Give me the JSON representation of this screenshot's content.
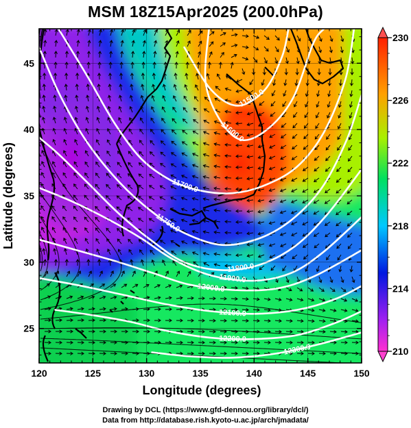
{
  "title": "MSM 18Z15Apr2025 (200.0hPa)",
  "chart_data": {
    "type": "heatmap",
    "title": "MSM 18Z15Apr2025 (200.0hPa)",
    "xlabel": "Longitude (degrees)",
    "ylabel": "Latitude  (degrees)",
    "xlim": [
      120,
      150
    ],
    "ylim": [
      22.4,
      47.6
    ],
    "xticks": [
      120,
      125,
      130,
      135,
      140,
      145,
      150
    ],
    "xtick_labels": [
      "120",
      "125",
      "130",
      "135",
      "140",
      "145",
      "150"
    ],
    "yticks": [
      25,
      30,
      35,
      40,
      45
    ],
    "ytick_labels": [
      "25",
      "30",
      "35",
      "40",
      "45"
    ],
    "grid": true,
    "colorbar": {
      "min": 210,
      "max": 230,
      "ticks": [
        210,
        214,
        218,
        222,
        226,
        230
      ],
      "tick_labels": [
        "210",
        "214",
        "218",
        "222",
        "226",
        "230"
      ],
      "colors": [
        "#ff2fd0",
        "#a020f0",
        "#0018e0",
        "#00c8ff",
        "#00e060",
        "#a8f000",
        "#ffa000",
        "#ff2000"
      ]
    },
    "contours": [
      {
        "label": "11500.0",
        "points": [
          [
            133.5,
            46.2
          ],
          [
            136.0,
            43.0
          ],
          [
            138.5,
            41.8
          ],
          [
            141.0,
            43.0
          ],
          [
            142.6,
            45.5
          ],
          [
            143.2,
            47.6
          ]
        ]
      },
      {
        "label": "11600.0",
        "points": [
          [
            135.8,
            47.6
          ],
          [
            135.5,
            43.5
          ],
          [
            137.0,
            40.5
          ],
          [
            139.0,
            39.2
          ],
          [
            141.5,
            40.2
          ],
          [
            143.7,
            42.5
          ],
          [
            145.5,
            46.5
          ],
          [
            146.5,
            47.6
          ]
        ]
      },
      {
        "label": "11700.0",
        "points": [
          [
            121.8,
            47.6
          ],
          [
            124.5,
            44.0
          ],
          [
            127.0,
            40.5
          ],
          [
            129.5,
            37.8
          ],
          [
            132.2,
            36.2
          ],
          [
            135.0,
            35.4
          ],
          [
            138.0,
            35.2
          ],
          [
            141.0,
            35.8
          ],
          [
            144.0,
            37.2
          ],
          [
            146.5,
            39.8
          ],
          [
            148.5,
            43.8
          ],
          [
            149.3,
            47.6
          ]
        ]
      },
      {
        "label": "11750.0",
        "points": [
          [
            120.0,
            46.2
          ],
          [
            122.0,
            42.5
          ],
          [
            124.5,
            39.0
          ],
          [
            127.5,
            36.0
          ],
          [
            130.5,
            33.8
          ],
          [
            133.5,
            32.2
          ],
          [
            137.0,
            31.3
          ],
          [
            140.5,
            31.8
          ],
          [
            143.5,
            33.2
          ],
          [
            146.3,
            35.6
          ],
          [
            148.6,
            39.2
          ],
          [
            150.0,
            42.6
          ]
        ]
      },
      {
        "label": "11800.0",
        "points": [
          [
            120.0,
            39.4
          ],
          [
            122.0,
            38.0
          ],
          [
            124.5,
            36.0
          ],
          [
            127.5,
            33.6
          ],
          [
            130.5,
            31.6
          ],
          [
            133.5,
            30.0
          ],
          [
            137.0,
            29.4
          ],
          [
            140.5,
            29.8
          ],
          [
            143.8,
            31.2
          ],
          [
            146.8,
            33.6
          ],
          [
            150.0,
            37.0
          ]
        ]
      },
      {
        "label": "11900.0",
        "points": [
          [
            120.0,
            35.6
          ],
          [
            123.0,
            34.6
          ],
          [
            126.5,
            33.2
          ],
          [
            129.5,
            31.8
          ],
          [
            132.5,
            30.2
          ],
          [
            136.0,
            29.0
          ],
          [
            140.0,
            28.6
          ],
          [
            143.5,
            29.2
          ],
          [
            146.5,
            30.8
          ],
          [
            150.0,
            33.4
          ]
        ]
      },
      {
        "label": "12000.0",
        "points": [
          [
            120.0,
            31.7
          ],
          [
            123.5,
            30.9
          ],
          [
            127.0,
            30.1
          ],
          [
            130.5,
            29.2
          ],
          [
            134.0,
            28.3
          ],
          [
            138.0,
            27.9
          ],
          [
            142.0,
            28.0
          ],
          [
            145.5,
            28.9
          ],
          [
            150.0,
            30.9
          ]
        ]
      },
      {
        "label": "12100.0",
        "points": [
          [
            120.0,
            28.8
          ],
          [
            124.0,
            28.2
          ],
          [
            128.0,
            27.5
          ],
          [
            132.0,
            26.8
          ],
          [
            136.0,
            26.3
          ],
          [
            140.0,
            26.1
          ],
          [
            144.0,
            26.4
          ],
          [
            147.5,
            27.2
          ],
          [
            150.0,
            28.2
          ]
        ]
      },
      {
        "label": "12200.0",
        "points": [
          [
            121.5,
            26.4
          ],
          [
            125.0,
            26.0
          ],
          [
            128.5,
            25.5
          ],
          [
            132.0,
            24.8
          ],
          [
            136.0,
            24.3
          ],
          [
            140.0,
            24.2
          ],
          [
            144.0,
            24.5
          ],
          [
            147.5,
            25.4
          ],
          [
            150.0,
            26.3
          ]
        ]
      },
      {
        "label": "12300.0",
        "points": [
          [
            130.5,
            23.2
          ],
          [
            134.0,
            22.9
          ],
          [
            138.0,
            22.8
          ],
          [
            142.0,
            23.1
          ],
          [
            146.0,
            23.8
          ],
          [
            150.0,
            24.7
          ]
        ]
      }
    ]
  }
}
